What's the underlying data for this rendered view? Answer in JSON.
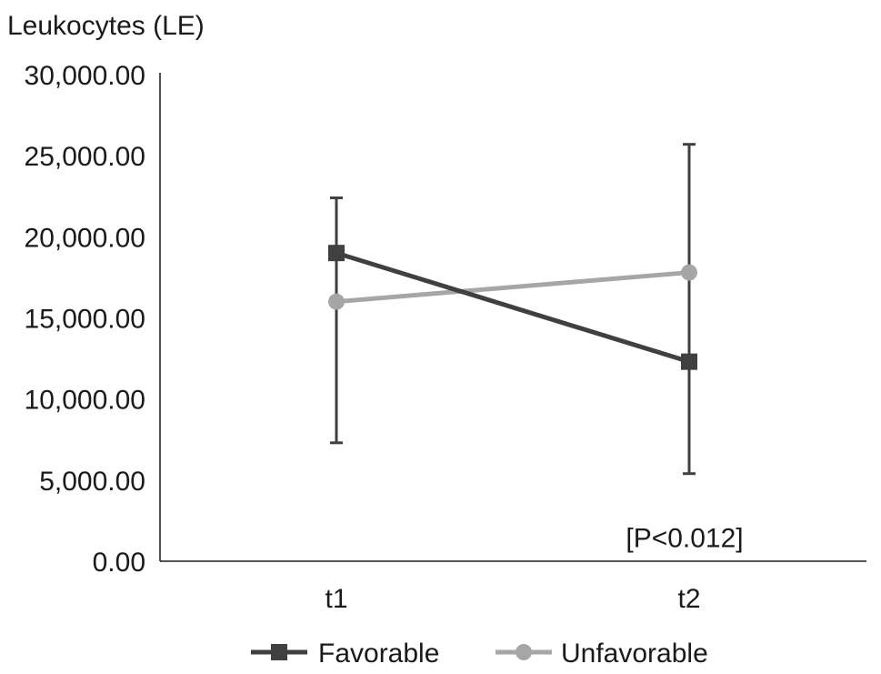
{
  "chart_data": {
    "type": "line",
    "ylabel": "Leukocytes (LE)",
    "xlabel": "",
    "categories": [
      "t1",
      "t2"
    ],
    "ylim": [
      0,
      30000
    ],
    "yticks": [
      0,
      5000,
      10000,
      15000,
      20000,
      25000,
      30000
    ],
    "ytick_labels": [
      "0.00",
      "5,000.00",
      "10,000.00",
      "15,000.00",
      "20,000.00",
      "25,000.00",
      "30,000.00"
    ],
    "grid": false,
    "legend_position": "bottom",
    "series": [
      {
        "name": "Favorable",
        "color": "#404040",
        "marker": "square",
        "values": [
          19000,
          12300
        ],
        "error_upper": [
          22400,
          25700
        ],
        "error_lower": [
          7300,
          5400
        ]
      },
      {
        "name": "Unfavorable",
        "color": "#a6a6a6",
        "marker": "circle",
        "values": [
          16000,
          17800
        ]
      }
    ],
    "annotations": [
      {
        "text": "[P<0.012]",
        "category": "t2",
        "y": 1500
      }
    ]
  }
}
